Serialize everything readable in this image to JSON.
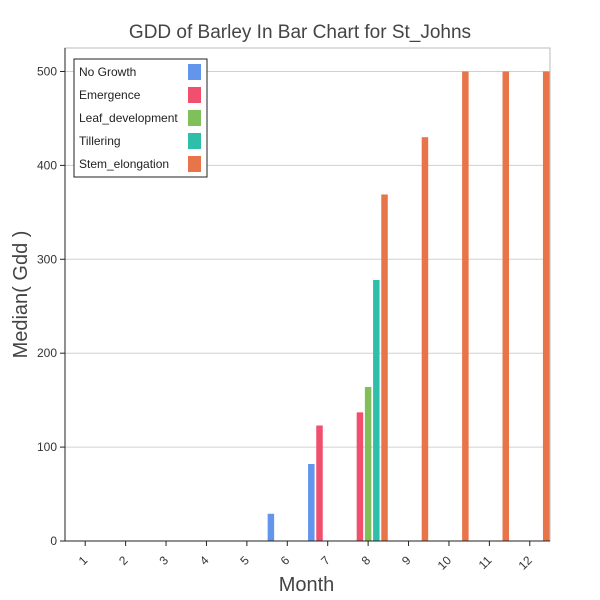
{
  "chart_data": {
    "type": "bar",
    "title": "GDD of Barley In Bar Chart for St_Johns",
    "xlabel": "Month",
    "ylabel": "Median( Gdd )",
    "categories": [
      "1",
      "2",
      "3",
      "4",
      "5",
      "6",
      "7",
      "8",
      "9",
      "10",
      "11",
      "12"
    ],
    "ylim": [
      0,
      525
    ],
    "yticks": [
      0,
      100,
      200,
      300,
      400,
      500
    ],
    "grid": "horizontal",
    "legend_position": "top-left",
    "series": [
      {
        "name": "No Growth",
        "color": "#6495ed",
        "values": [
          0,
          0,
          0,
          0,
          0,
          29,
          82,
          0,
          0,
          0,
          0,
          0
        ]
      },
      {
        "name": "Emergence",
        "color": "#f0506e",
        "values": [
          0,
          0,
          0,
          0,
          0,
          0,
          123,
          137,
          0,
          0,
          0,
          0
        ]
      },
      {
        "name": "Leaf_development",
        "color": "#7fc05a",
        "values": [
          0,
          0,
          0,
          0,
          0,
          0,
          0,
          164,
          0,
          0,
          0,
          0
        ]
      },
      {
        "name": "Tillering",
        "color": "#2ebfaa",
        "values": [
          0,
          0,
          0,
          0,
          0,
          0,
          0,
          278,
          0,
          0,
          0,
          0
        ]
      },
      {
        "name": "Stem_elongation",
        "color": "#e8744a",
        "values": [
          0,
          0,
          0,
          0,
          0,
          0,
          0,
          369,
          430,
          500,
          500,
          500
        ]
      }
    ]
  }
}
